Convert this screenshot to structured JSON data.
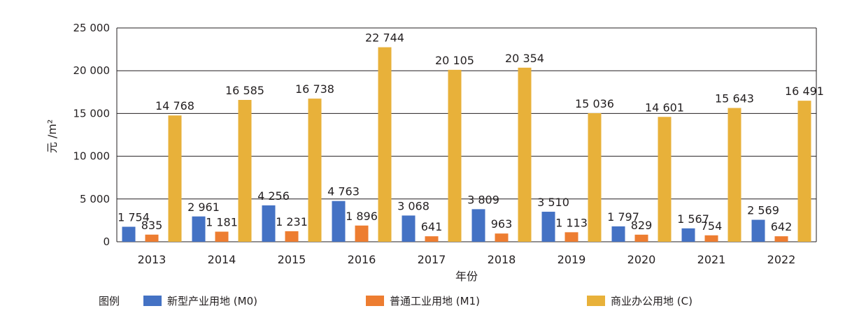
{
  "chart_data": {
    "type": "bar",
    "categories": [
      "2013",
      "2014",
      "2015",
      "2016",
      "2017",
      "2018",
      "2019",
      "2020",
      "2021",
      "2022"
    ],
    "series": [
      {
        "name": "新型产业用地 (M0)",
        "color": "#4472c4",
        "values": [
          1754,
          2961,
          4256,
          4763,
          3068,
          3809,
          3510,
          1797,
          1567,
          2569
        ],
        "labels": [
          "1 754",
          "2 961",
          "4 256",
          "4 763",
          "3 068",
          "3 809",
          "3 510",
          "1 797",
          "1 567",
          "2 569"
        ]
      },
      {
        "name": "普通工业用地 (M1)",
        "color": "#ed7d31",
        "values": [
          835,
          1181,
          1231,
          1896,
          641,
          963,
          1113,
          829,
          754,
          642
        ],
        "labels": [
          "835",
          "1 181",
          "1 231",
          "1 896",
          "641",
          "963",
          "1 113",
          "829",
          "754",
          "642"
        ]
      },
      {
        "name": "商业办公用地 (C)",
        "color": "#e8b13a",
        "values": [
          14768,
          16585,
          16738,
          22744,
          20105,
          20354,
          15036,
          14601,
          15643,
          16491
        ],
        "labels": [
          "14 768",
          "16 585",
          "16 738",
          "22 744",
          "20 105",
          "20 354",
          "15 036",
          "14 601",
          "15 643",
          "16 491"
        ]
      }
    ],
    "ylim": [
      0,
      25000
    ],
    "yticks": [
      0,
      5000,
      10000,
      15000,
      20000,
      25000
    ],
    "ytick_labels": [
      "0",
      "5 000",
      "10 000",
      "15 000",
      "20 000",
      "25 000"
    ],
    "ylabel": "元 /m²",
    "xlabel": "年份",
    "grid": true,
    "legend_title": "图例",
    "legend_position": "bottom"
  }
}
